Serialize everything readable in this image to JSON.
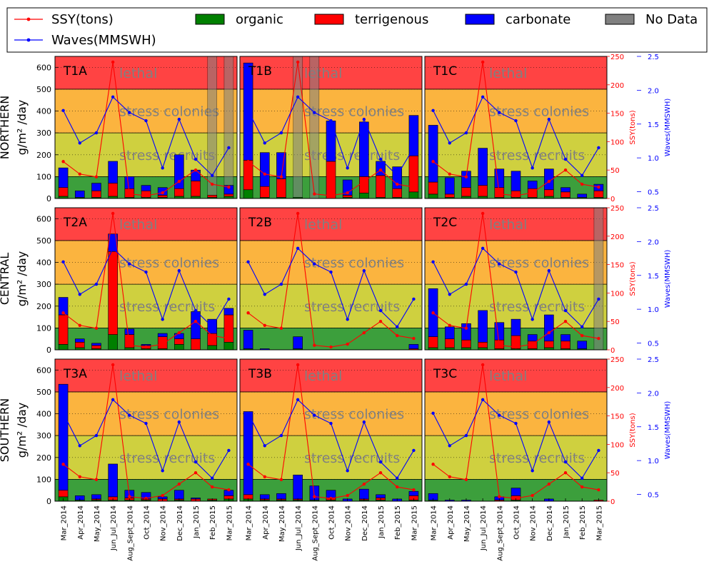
{
  "chart_data": {
    "type": "bar",
    "title": "",
    "categories": [
      "Mar_2014",
      "Apr_2014",
      "May_2014",
      "Jun_Jul_2014",
      "Aug_Sept_2014",
      "Oct_2014",
      "Nov_2014",
      "Dec_2014",
      "Jan_2015",
      "Feb_2015",
      "Mar_2015"
    ],
    "legend": {
      "position": "top",
      "items": [
        {
          "label": "SSY(tons)",
          "kind": "line",
          "color": "#ff0000"
        },
        {
          "label": "Waves(MMSWH)",
          "kind": "line",
          "color": "#0000ff"
        },
        {
          "label": "organic",
          "kind": "patch",
          "color": "#008000"
        },
        {
          "label": "terrigenous",
          "kind": "patch",
          "color": "#ff0000"
        },
        {
          "label": "carbonate",
          "kind": "patch",
          "color": "#0000ff"
        },
        {
          "label": "No Data",
          "kind": "patch",
          "color": "#808080"
        }
      ]
    },
    "row_labels": [
      {
        "line1": "NORTHERN",
        "line2": "g/m² /day"
      },
      {
        "line1": "CENTRAL",
        "line2": "g/m² /day"
      },
      {
        "line1": "SOUTHERN",
        "line2": "g/m² /day"
      }
    ],
    "ylim": [
      0,
      650
    ],
    "yticks": [
      0,
      100,
      200,
      300,
      400,
      500,
      600
    ],
    "ssy_axis": {
      "label": "SSY(tons)",
      "lim": [
        0,
        250
      ],
      "ticks": [
        0,
        50,
        100,
        150,
        200,
        250
      ],
      "color": "#ff0000"
    },
    "wave_axis": {
      "label": "Waves(MMSWH)",
      "lim": [
        0.4,
        2.5
      ],
      "ticks": [
        0.5,
        1.0,
        1.5,
        2.0,
        2.5
      ],
      "tick_labels": [
        "0.5",
        "1.0",
        "1.5",
        "2.0",
        "2.5"
      ],
      "color": "#0000ff"
    },
    "zones": [
      {
        "label": "",
        "from": 0,
        "to": 100,
        "color": "#3c9f3c"
      },
      {
        "label": "stress recruits",
        "from": 100,
        "to": 300,
        "color": "#cfd03f"
      },
      {
        "label": "stress colonies",
        "from": 300,
        "to": 500,
        "color": "#fbb43f"
      },
      {
        "label": "lethal",
        "from": 500,
        "to": 650,
        "color": "#ff4343"
      }
    ],
    "ssy": [
      65,
      43,
      38,
      240,
      8,
      5,
      10,
      30,
      50,
      25,
      20
    ],
    "waves": [
      1.7,
      1.22,
      1.37,
      1.9,
      1.67,
      1.55,
      0.85,
      1.57,
      0.98,
      0.74,
      1.15
    ],
    "panels": [
      {
        "label": "T1A",
        "organic": [
          10,
          5,
          5,
          10,
          5,
          5,
          5,
          10,
          10,
          5,
          10
        ],
        "terrigenous": [
          40,
          0,
          30,
          60,
          40,
          30,
          10,
          35,
          70,
          10,
          10
        ],
        "carbonate": [
          90,
          30,
          35,
          100,
          55,
          25,
          35,
          155,
          50,
          0,
          40
        ],
        "no_data": [
          9,
          10
        ]
      },
      {
        "label": "T1B",
        "organic": [
          40,
          5,
          5,
          5,
          0,
          0,
          5,
          25,
          5,
          5,
          30
        ],
        "terrigenous": [
          135,
          50,
          85,
          0,
          0,
          170,
          10,
          75,
          100,
          40,
          165
        ],
        "carbonate": [
          445,
          155,
          120,
          0,
          0,
          185,
          70,
          250,
          65,
          100,
          185
        ],
        "no_data": [
          3,
          4
        ]
      },
      {
        "label": "T1C",
        "organic": [
          20,
          5,
          10,
          10,
          5,
          5,
          5,
          10,
          5,
          5,
          5
        ],
        "terrigenous": [
          55,
          15,
          40,
          50,
          45,
          30,
          40,
          30,
          25,
          0,
          30
        ],
        "carbonate": [
          260,
          75,
          75,
          170,
          85,
          90,
          35,
          95,
          20,
          15,
          30
        ],
        "no_data": []
      },
      {
        "label": "T2A",
        "organic": [
          25,
          10,
          5,
          70,
          10,
          5,
          5,
          25,
          0,
          20,
          35
        ],
        "terrigenous": [
          135,
          25,
          15,
          380,
          60,
          15,
          55,
          25,
          50,
          55,
          125
        ],
        "carbonate": [
          80,
          15,
          10,
          80,
          25,
          5,
          15,
          25,
          125,
          65,
          30
        ],
        "no_data": []
      },
      {
        "label": "T2B",
        "organic": [
          5,
          0,
          0,
          5,
          0,
          0,
          0,
          0,
          0,
          0,
          0
        ],
        "terrigenous": [
          0,
          0,
          0,
          0,
          0,
          0,
          0,
          0,
          0,
          0,
          5
        ],
        "carbonate": [
          85,
          5,
          0,
          55,
          0,
          0,
          0,
          0,
          0,
          0,
          20
        ],
        "no_data": []
      },
      {
        "label": "T2C",
        "organic": [
          10,
          10,
          10,
          10,
          5,
          5,
          5,
          10,
          5,
          5,
          0
        ],
        "terrigenous": [
          50,
          40,
          35,
          25,
          40,
          60,
          35,
          30,
          35,
          0,
          0
        ],
        "carbonate": [
          220,
          55,
          75,
          145,
          80,
          75,
          30,
          120,
          30,
          35,
          0
        ],
        "no_data": [
          10
        ]
      },
      {
        "label": "T3A",
        "organic": [
          20,
          5,
          5,
          5,
          5,
          5,
          0,
          5,
          0,
          5,
          10
        ],
        "terrigenous": [
          30,
          0,
          5,
          15,
          10,
          5,
          10,
          5,
          10,
          5,
          15
        ],
        "carbonate": [
          485,
          20,
          20,
          150,
          35,
          30,
          10,
          40,
          5,
          0,
          25
        ],
        "no_data": []
      },
      {
        "label": "T3B",
        "organic": [
          10,
          5,
          5,
          5,
          5,
          5,
          0,
          5,
          5,
          0,
          5
        ],
        "terrigenous": [
          20,
          5,
          5,
          5,
          0,
          10,
          0,
          5,
          10,
          0,
          20
        ],
        "carbonate": [
          380,
          20,
          25,
          110,
          65,
          35,
          10,
          45,
          15,
          10,
          20
        ],
        "no_data": []
      },
      {
        "label": "T3C",
        "organic": [
          5,
          0,
          0,
          0,
          0,
          5,
          0,
          0,
          0,
          0,
          0
        ],
        "terrigenous": [
          0,
          0,
          0,
          0,
          5,
          20,
          0,
          0,
          0,
          0,
          5
        ],
        "carbonate": [
          30,
          5,
          5,
          0,
          15,
          35,
          0,
          10,
          0,
          0,
          0
        ],
        "no_data": []
      }
    ]
  }
}
